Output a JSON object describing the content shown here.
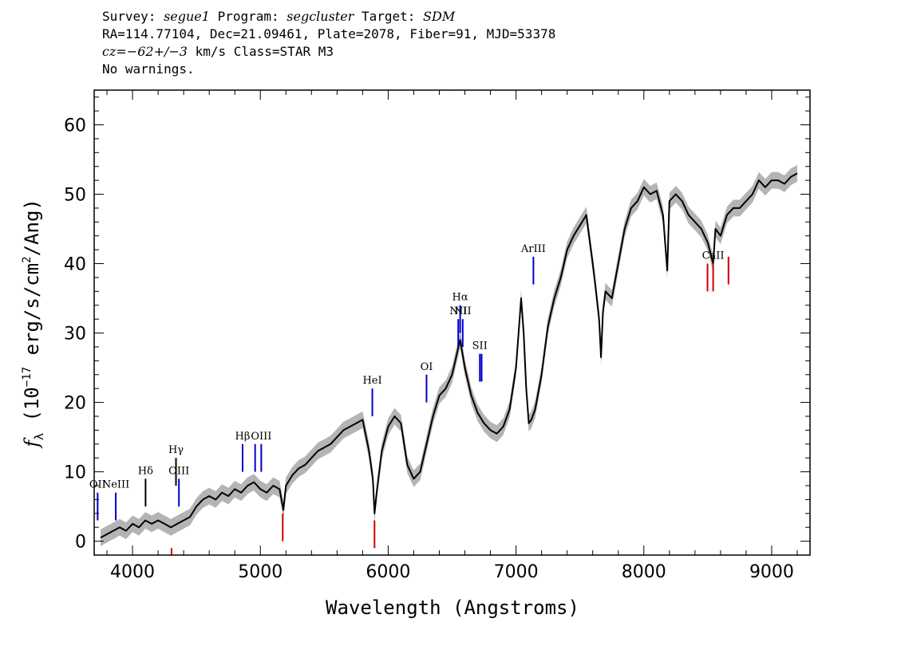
{
  "header": {
    "line1": {
      "survey_key": "Survey: ",
      "survey": "segue1",
      "program_key": " Program: ",
      "program": "segcluster",
      "target_key": " Target: ",
      "target": "SDM"
    },
    "line2": "RA=114.77104, Dec=21.09461, Plate=2078, Fiber=91, MJD=53378",
    "line3": {
      "cz": "cz",
      "cz_value": "=−62+/−3",
      "rest": " km/s Class=STAR M3"
    },
    "line4": "No warnings."
  },
  "chart_data": {
    "type": "line",
    "xlabel": "Wavelength (Angstroms)",
    "ylabel": {
      "f": "f",
      "sub": "λ",
      "pre": " (10",
      "exp1": "−17",
      "mid": " erg/s/cm",
      "exp2": "2",
      "post": "/Ang)"
    },
    "xlim": [
      3700,
      9300
    ],
    "ylim": [
      -2,
      65
    ],
    "xticks": [
      4000,
      5000,
      6000,
      7000,
      8000,
      9000
    ],
    "yticks": [
      0,
      10,
      20,
      30,
      40,
      50,
      60
    ],
    "xtick_labels": [
      "4000",
      "5000",
      "6000",
      "7000",
      "8000",
      "9000"
    ],
    "ytick_labels": [
      "0",
      "10",
      "20",
      "30",
      "40",
      "50",
      "60"
    ],
    "x_minor_step": 200,
    "y_minor_step": 2,
    "grid": false,
    "series": [
      {
        "color": "#000000",
        "error_color": "#b4b4b4",
        "x": [
          3750,
          3800,
          3850,
          3900,
          3950,
          4000,
          4050,
          4100,
          4150,
          4200,
          4250,
          4300,
          4350,
          4400,
          4450,
          4500,
          4550,
          4600,
          4650,
          4700,
          4750,
          4800,
          4850,
          4900,
          4950,
          5000,
          5050,
          5100,
          5150,
          5180,
          5200,
          5250,
          5300,
          5350,
          5400,
          5450,
          5500,
          5550,
          5600,
          5650,
          5700,
          5750,
          5800,
          5850,
          5880,
          5893,
          5910,
          5950,
          6000,
          6050,
          6100,
          6150,
          6200,
          6250,
          6300,
          6350,
          6400,
          6450,
          6500,
          6550,
          6563,
          6600,
          6650,
          6700,
          6750,
          6800,
          6850,
          6900,
          6950,
          7000,
          7040,
          7060,
          7080,
          7100,
          7120,
          7150,
          7200,
          7250,
          7300,
          7350,
          7400,
          7450,
          7500,
          7550,
          7600,
          7620,
          7650,
          7665,
          7680,
          7700,
          7750,
          7800,
          7850,
          7900,
          7950,
          8000,
          8050,
          8100,
          8150,
          8183,
          8200,
          8250,
          8300,
          8350,
          8400,
          8450,
          8500,
          8542,
          8560,
          8600,
          8650,
          8700,
          8750,
          8800,
          8850,
          8900,
          8950,
          9000,
          9050,
          9100,
          9150,
          9200
        ],
        "y": [
          0.5,
          1.0,
          1.5,
          2.0,
          1.5,
          2.5,
          2.0,
          3.0,
          2.5,
          3.0,
          2.5,
          2.0,
          2.5,
          3.0,
          3.5,
          5.0,
          6.0,
          6.5,
          6.0,
          7.0,
          6.5,
          7.5,
          7.0,
          8.0,
          8.5,
          7.5,
          7.0,
          8.0,
          7.5,
          4.5,
          8.0,
          9.5,
          10.5,
          11.0,
          12.0,
          13.0,
          13.5,
          14.0,
          15.0,
          16.0,
          16.5,
          17.0,
          17.5,
          13.0,
          9.0,
          4.0,
          7.0,
          13.0,
          16.5,
          18.0,
          17.0,
          11.0,
          9.0,
          10.0,
          14.0,
          18.0,
          21.0,
          22.0,
          24.0,
          28.0,
          29.0,
          25.0,
          21.0,
          18.5,
          17.0,
          16.0,
          15.5,
          16.5,
          19.0,
          25.0,
          35.0,
          30.0,
          22.0,
          17.0,
          17.5,
          19.0,
          24.0,
          31.0,
          35.0,
          38.0,
          42.0,
          44.0,
          45.5,
          47.0,
          40.0,
          37.0,
          32.0,
          26.5,
          33.0,
          36.0,
          35.0,
          40.0,
          45.0,
          48.0,
          49.0,
          51.0,
          50.0,
          50.5,
          47.0,
          39.0,
          49.0,
          50.0,
          49.0,
          47.0,
          46.0,
          45.0,
          43.0,
          40.0,
          45.0,
          44.0,
          47.0,
          48.0,
          48.0,
          49.0,
          50.0,
          52.0,
          51.0,
          52.0,
          52.0,
          51.5,
          52.5,
          53.0
        ]
      }
    ],
    "line_markers": [
      {
        "label": "OII",
        "x": 3727,
        "y0": 3,
        "y1": 7,
        "color": "#0000cc"
      },
      {
        "label": "NeIII",
        "x": 3869,
        "y0": 3,
        "y1": 7,
        "color": "#0000cc"
      },
      {
        "label": "Hδ",
        "x": 4102,
        "y0": 5,
        "y1": 9,
        "color": "#000000"
      },
      {
        "label": "Hγ",
        "x": 4340,
        "y0": 8,
        "y1": 12,
        "color": "#000000"
      },
      {
        "label": "OIII",
        "x": 4363,
        "y0": 5,
        "y1": 9,
        "color": "#0000cc"
      },
      {
        "label": "Hβ",
        "x": 4861,
        "y0": 10,
        "y1": 14,
        "color": "#0000cc"
      },
      {
        "label": "",
        "x": 4959,
        "y0": 10,
        "y1": 14,
        "color": "#0000cc"
      },
      {
        "label": "OIII",
        "x": 5007,
        "y0": 10,
        "y1": 14,
        "color": "#0000cc"
      },
      {
        "label": "HeI",
        "x": 5876,
        "y0": 18,
        "y1": 22,
        "color": "#0000cc"
      },
      {
        "label": "OI",
        "x": 6300,
        "y0": 20,
        "y1": 24,
        "color": "#0000cc"
      },
      {
        "label": "NII",
        "x": 6548,
        "y0": 28,
        "y1": 32,
        "color": "#0000cc"
      },
      {
        "label": "Hα",
        "x": 6563,
        "y0": 30,
        "y1": 34,
        "color": "#0000cc"
      },
      {
        "label": "NII",
        "x": 6583,
        "y0": 28,
        "y1": 32,
        "color": "#0000cc"
      },
      {
        "label": "SII",
        "x": 6717,
        "y0": 23,
        "y1": 27,
        "color": "#0000cc"
      },
      {
        "label": "",
        "x": 6731,
        "y0": 23,
        "y1": 27,
        "color": "#0000cc"
      },
      {
        "label": "ArIII",
        "x": 7136,
        "y0": 37,
        "y1": 41,
        "color": "#0000cc"
      },
      {
        "label": "",
        "x": 4305,
        "y0": -2,
        "y1": -1,
        "color": "#cc0000"
      },
      {
        "label": "",
        "x": 5175,
        "y0": 0,
        "y1": 4,
        "color": "#cc0000"
      },
      {
        "label": "",
        "x": 5893,
        "y0": -1,
        "y1": 3,
        "color": "#cc0000"
      },
      {
        "label": "",
        "x": 8498,
        "y0": 36,
        "y1": 40,
        "color": "#cc0000"
      },
      {
        "label": "CaII",
        "x": 8542,
        "y0": 36,
        "y1": 40,
        "color": "#cc0000"
      },
      {
        "label": "",
        "x": 8662,
        "y0": 37,
        "y1": 41,
        "color": "#cc0000"
      }
    ]
  }
}
